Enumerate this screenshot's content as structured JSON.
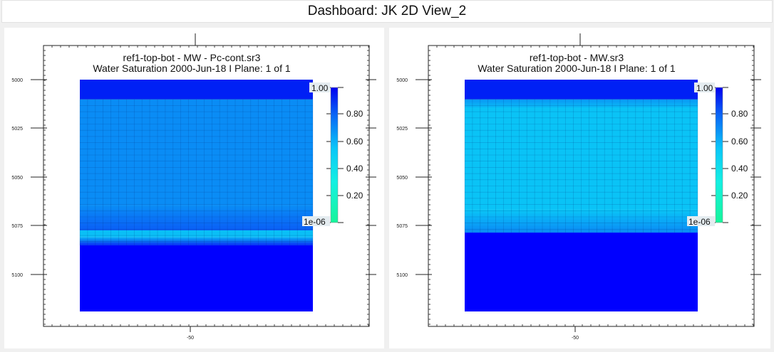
{
  "dashboard": {
    "title": "Dashboard: JK 2D View_2"
  },
  "views": [
    {
      "title_line1": "ref1-top-bot - MW - Pc-cont.sr3",
      "title_line2": "Water Saturation  2000-Jun-18   I Plane: 1 of 1",
      "y_ticks": [
        "5000",
        "5025",
        "5050",
        "5075",
        "5100"
      ],
      "x_tick": "-50",
      "colorbar": {
        "max_label": "1.00",
        "min_label": "1e-06",
        "ticks": [
          "0.80",
          "0.60",
          "0.40",
          "0.20"
        ]
      },
      "bands": [
        {
          "from": 0,
          "to": 0.085,
          "color": "#0020f5"
        },
        {
          "from": 0.085,
          "to": 0.54,
          "color": "#0a8cf5"
        },
        {
          "from": 0.54,
          "to": 0.65,
          "color": "#0a8cf5",
          "to_color": "#0a60f5"
        },
        {
          "from": 0.65,
          "to": 0.68,
          "color": "#0abff6"
        },
        {
          "from": 0.68,
          "to": 0.715,
          "color": "#0aa0f5",
          "to_color": "#0a3cf5"
        },
        {
          "from": 0.715,
          "to": 1.0,
          "color": "#0000ff"
        }
      ]
    },
    {
      "title_line1": "ref1-top-bot - MW.sr3",
      "title_line2": "Water Saturation  2000-Jun-18   I Plane: 1 of 1",
      "y_ticks": [
        "5000",
        "5025",
        "5050",
        "5075",
        "5100"
      ],
      "x_tick": "-50",
      "colorbar": {
        "max_label": "1.00",
        "min_label": "1e-06",
        "ticks": [
          "0.80",
          "0.60",
          "0.40",
          "0.20"
        ]
      },
      "bands": [
        {
          "from": 0,
          "to": 0.085,
          "color": "#0020f5"
        },
        {
          "from": 0.085,
          "to": 0.12,
          "color": "#0a9cf5",
          "to_color": "#0ab5f5"
        },
        {
          "from": 0.12,
          "to": 0.56,
          "color": "#0ac3f6"
        },
        {
          "from": 0.56,
          "to": 0.66,
          "color": "#0ac3f6",
          "to_color": "#0a8cf5"
        },
        {
          "from": 0.66,
          "to": 1.0,
          "color": "#0000ff"
        }
      ]
    }
  ]
}
